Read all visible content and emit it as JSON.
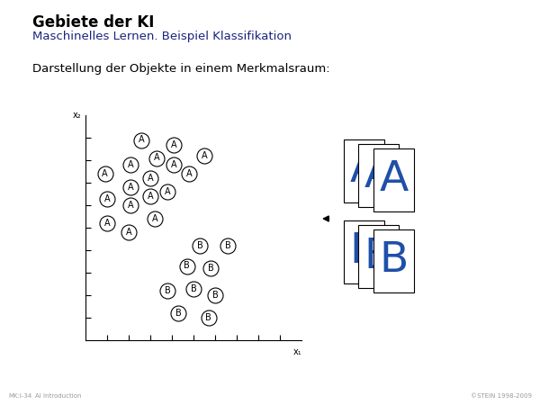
{
  "header": {
    "title": "Gebiete der KI",
    "subtitle": "Maschinelles Lernen. Beispiel Klassifikation"
  },
  "text": "Darstellung der Objekte in einem Merkmalsraum:",
  "chart_data": {
    "type": "scatter",
    "x_label": "x₁",
    "y_label": "x₂",
    "xlim": [
      0,
      10
    ],
    "ylim": [
      0,
      10
    ],
    "xticks": [
      1,
      2,
      3,
      4,
      5,
      6,
      7,
      8,
      9
    ],
    "yticks": [
      1,
      2,
      3,
      4,
      5,
      6,
      7,
      8,
      9
    ],
    "tick_labels": false,
    "grid": false,
    "marker": "circle",
    "series": [
      {
        "name": "A",
        "color": "#000000",
        "x": [
          2.6,
          4.1,
          5.5,
          3.3,
          2.1,
          4.1,
          0.9,
          3.0,
          4.8,
          2.1,
          3.8,
          3.0,
          1.0,
          2.1,
          3.2,
          1.0,
          2.0
        ],
        "values": [
          8.9,
          8.7,
          8.2,
          8.1,
          7.8,
          7.8,
          7.4,
          7.2,
          7.4,
          6.8,
          6.6,
          6.4,
          6.3,
          6.0,
          5.4,
          5.2,
          4.8
        ]
      },
      {
        "name": "B",
        "color": "#000000",
        "x": [
          5.3,
          6.6,
          4.7,
          5.8,
          3.8,
          5.0,
          6.0,
          4.3,
          5.7
        ],
        "values": [
          4.2,
          4.2,
          3.3,
          3.2,
          2.2,
          2.3,
          2.0,
          1.2,
          1.0
        ]
      }
    ]
  },
  "samples": [
    "A",
    "B"
  ],
  "footer": {
    "left": "MK:I-34",
    "middle": "AI Introduction",
    "right": "©STEIN 1998-2009"
  }
}
